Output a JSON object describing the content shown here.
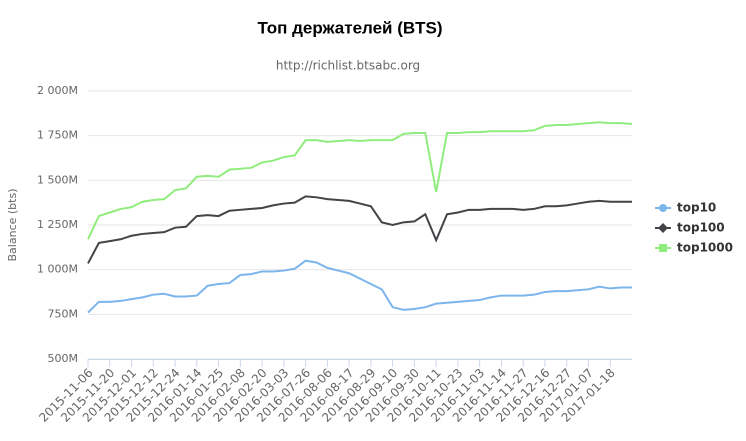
{
  "chart_data": {
    "type": "line",
    "title": "Топ держателей (BTS)",
    "subtitle": "http://richlist.btsabc.org",
    "y_axis_label": "Balance (bts)",
    "categories": [
      "2015-11-06",
      null,
      "2015-11-20",
      null,
      "2015-12-01",
      null,
      "2015-12-12",
      null,
      "2015-12-24",
      null,
      "2016-01-14",
      null,
      "2016-01-25",
      null,
      "2016-02-08",
      null,
      "2016-02-20",
      null,
      "2016-03-03",
      null,
      "2016-07-26",
      null,
      "2016-08-06",
      null,
      "2016-08-17",
      null,
      "2016-08-29",
      null,
      "2016-09-10",
      null,
      "2016-09-30",
      null,
      "2016-10-11",
      null,
      "2016-10-23",
      null,
      "2016-11-03",
      null,
      "2016-11-14",
      null,
      "2016-11-27",
      null,
      "2016-12-16",
      null,
      "2016-12-27",
      null,
      "2017-01-07",
      null,
      "2017-01-18",
      null,
      null
    ],
    "series": [
      {
        "name": "top10",
        "color": "#7cb5ec",
        "marker": "circle",
        "values": [
          760,
          820,
          820,
          825,
          835,
          845,
          860,
          865,
          850,
          850,
          855,
          910,
          920,
          925,
          970,
          975,
          990,
          990,
          995,
          1005,
          1050,
          1040,
          1010,
          995,
          980,
          950,
          920,
          890,
          790,
          775,
          780,
          790,
          810,
          815,
          820,
          825,
          830,
          845,
          855,
          855,
          855,
          860,
          875,
          880,
          880,
          885,
          890,
          905,
          895,
          900,
          900
        ]
      },
      {
        "name": "top100",
        "color": "#434348",
        "marker": "diamond",
        "values": [
          1035,
          1150,
          1160,
          1170,
          1190,
          1200,
          1205,
          1210,
          1235,
          1240,
          1300,
          1305,
          1300,
          1330,
          1335,
          1340,
          1345,
          1360,
          1370,
          1375,
          1410,
          1405,
          1395,
          1390,
          1385,
          1370,
          1355,
          1265,
          1250,
          1265,
          1270,
          1310,
          1165,
          1310,
          1320,
          1335,
          1335,
          1340,
          1340,
          1340,
          1335,
          1340,
          1355,
          1355,
          1360,
          1370,
          1380,
          1385,
          1380,
          1380,
          1380
        ]
      },
      {
        "name": "top1000",
        "color": "#90ed7d",
        "marker": "square",
        "values": [
          1170,
          1300,
          1320,
          1340,
          1350,
          1380,
          1390,
          1395,
          1445,
          1455,
          1520,
          1525,
          1520,
          1560,
          1565,
          1570,
          1600,
          1610,
          1630,
          1640,
          1725,
          1725,
          1715,
          1720,
          1725,
          1720,
          1725,
          1725,
          1725,
          1760,
          1765,
          1765,
          1435,
          1765,
          1765,
          1770,
          1770,
          1775,
          1775,
          1775,
          1775,
          1780,
          1805,
          1810,
          1810,
          1815,
          1820,
          1825,
          1820,
          1820,
          1815
        ]
      }
    ],
    "ylim": [
      500,
      2000
    ],
    "yticks": [
      {
        "value": 500,
        "label": "500M"
      },
      {
        "value": 750,
        "label": "750M"
      },
      {
        "value": 1000,
        "label": "1 000M"
      },
      {
        "value": 1250,
        "label": "1 250M"
      },
      {
        "value": 1500,
        "label": "1 500M"
      },
      {
        "value": 1750,
        "label": "1 750M"
      },
      {
        "value": 2000,
        "label": "2 000M"
      }
    ],
    "grid": true,
    "legend": "right"
  }
}
